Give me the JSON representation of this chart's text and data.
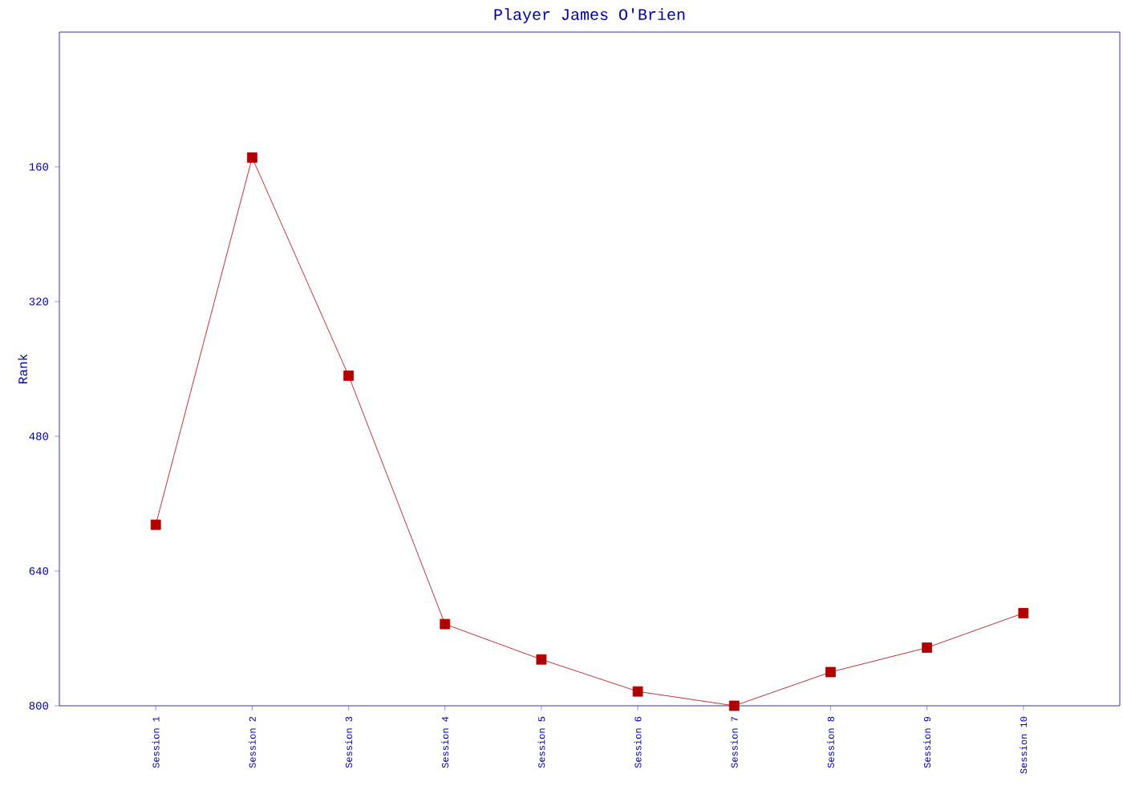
{
  "chart_data": {
    "type": "line",
    "title": "Player James O'Brien",
    "ylabel": "Rank",
    "categories": [
      "Session 1",
      "Session 2",
      "Session 3",
      "Session 4",
      "Session 5",
      "Session 6",
      "Session 7",
      "Session 8",
      "Session 9",
      "Session 10"
    ],
    "series": [
      {
        "color": "#b00000",
        "values": [
          585,
          149,
          408,
          703,
          745,
          783,
          800,
          760,
          731,
          690
        ]
      }
    ],
    "ylim": [
      800,
      0
    ],
    "yticks": [
      160,
      320,
      480,
      640,
      800
    ],
    "marker": "square",
    "line_style": "solid",
    "grid": false
  }
}
